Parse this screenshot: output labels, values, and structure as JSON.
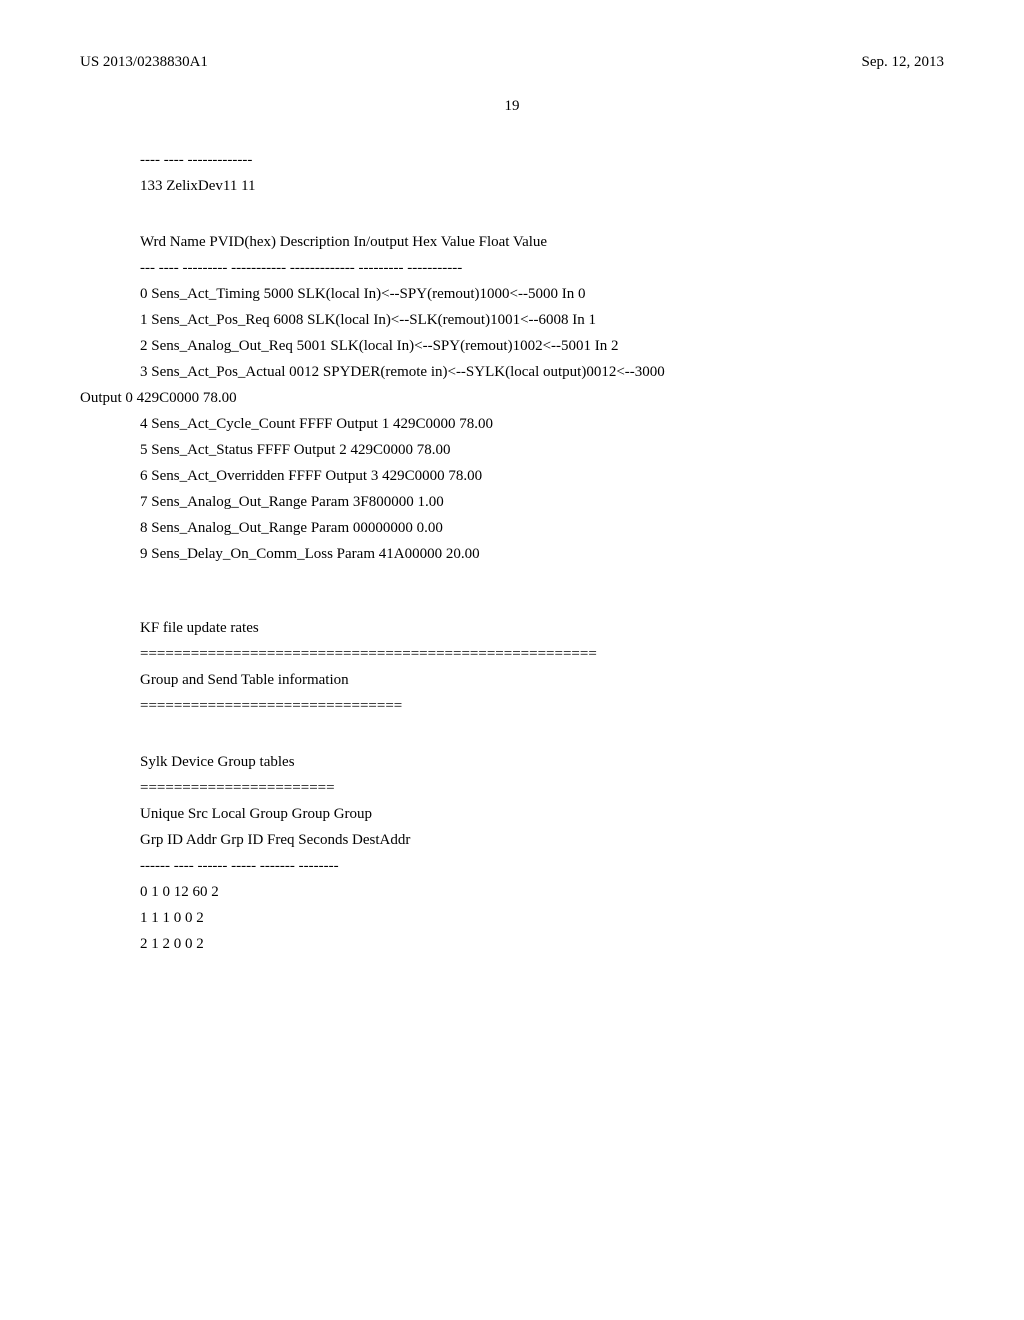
{
  "header": {
    "pub_number": "US 2013/0238830A1",
    "date": "Sep. 12, 2013",
    "page": "19"
  },
  "sep_line1": "---- ---- -------------",
  "dev_line": "133 ZelixDev11 11",
  "wrd_header": "Wrd Name PVID(hex) Description In/output Hex Value Float Value",
  "wrd_sep": "--- ---- --------- ----------- ------------- --------- -----------",
  "rows": {
    "r0": "0 Sens_Act_Timing 5000 SLK(local In)<--SPY(remout)1000<--5000 In 0",
    "r1": "1 Sens_Act_Pos_Req 6008 SLK(local In)<--SLK(remout)1001<--6008 In 1",
    "r2": "2 Sens_Analog_Out_Req 5001 SLK(local In)<--SPY(remout)1002<--5001 In 2",
    "r3a": "3 Sens_Act_Pos_Actual 0012 SPYDER(remote in)<--SYLK(local output)0012<--3000",
    "r3b": "Output 0 429C0000 78.00",
    "r4": "4 Sens_Act_Cycle_Count FFFF Output 1 429C0000 78.00",
    "r5": "5 Sens_Act_Status FFFF Output 2 429C0000 78.00",
    "r6": "6 Sens_Act_Overridden FFFF Output 3 429C0000 78.00",
    "r7": "7 Sens_Analog_Out_Range Param 3F800000 1.00",
    "r8": "8 Sens_Analog_Out_Range Param 00000000 0.00",
    "r9": "9 Sens_Delay_On_Comm_Loss Param 41A00000 20.00"
  },
  "kf_title": "KF file update rates",
  "kf_sep": "======================================================",
  "group_title": "Group and Send Table information",
  "group_sep": "===============================",
  "sylk_title": "Sylk Device Group tables",
  "sylk_sep": "=======================",
  "unique_line1": "Unique Src Local Group Group Group",
  "unique_line2": "Grp ID Addr Grp ID Freq Seconds DestAddr",
  "unique_sep": "------ ---- ------ ----- ------- --------",
  "grp": {
    "g0": "0 1 0 12 60 2",
    "g1": "1 1 1 0 0 2",
    "g2": "2 1 2 0 0 2"
  }
}
